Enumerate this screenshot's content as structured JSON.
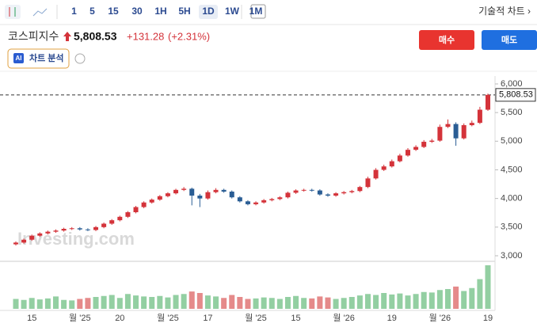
{
  "toolbar": {
    "intervals": [
      "1",
      "5",
      "15",
      "30",
      "1H",
      "5H",
      "1D",
      "1W",
      "1M"
    ],
    "active_interval": "1D",
    "technical": "기술적 차트 ›"
  },
  "header": {
    "name": "코스피지수",
    "change": "+131.28",
    "change_pct": "(+2.31%)",
    "buy": "매수",
    "sell": "매도",
    "ai_badge": "AI",
    "analysis": "차트 분석"
  },
  "watermark": "Investing.com",
  "chart_data": {
    "type": "candlestick",
    "categories": [
      null,
      null,
      "15",
      null,
      null,
      null,
      null,
      null,
      "월 '25",
      null,
      null,
      null,
      null,
      "20",
      null,
      null,
      null,
      null,
      null,
      "월 '25",
      null,
      null,
      null,
      null,
      "17",
      null,
      null,
      null,
      null,
      null,
      "월 '25",
      null,
      null,
      null,
      null,
      "15",
      null,
      null,
      null,
      null,
      null,
      "월 '26",
      null,
      null,
      null,
      null,
      null,
      "19",
      null,
      null,
      null,
      null,
      null,
      "월 '26",
      null,
      null,
      null,
      null,
      null,
      "19"
    ],
    "open": [
      3200,
      3230,
      3280,
      3350,
      3390,
      3420,
      3440,
      3470,
      3480,
      3460,
      3450,
      3500,
      3560,
      3620,
      3680,
      3760,
      3850,
      3930,
      3980,
      4040,
      4090,
      4150,
      4170,
      4050,
      4000,
      4110,
      4150,
      4120,
      4020,
      3950,
      3900,
      3930,
      3970,
      3990,
      4020,
      4100,
      4140,
      4150,
      4140,
      4070,
      4050,
      4090,
      4110,
      4130,
      4200,
      4350,
      4500,
      4560,
      4650,
      4750,
      4850,
      4900,
      4990,
      5010,
      5250,
      5300,
      5050,
      5280,
      5320,
      5550
    ],
    "high": [
      3250,
      3300,
      3370,
      3410,
      3440,
      3460,
      3490,
      3500,
      3500,
      3480,
      3520,
      3580,
      3640,
      3700,
      3780,
      3870,
      3950,
      4000,
      4060,
      4110,
      4170,
      4200,
      4190,
      4080,
      4140,
      4180,
      4170,
      4140,
      4040,
      3970,
      3950,
      3990,
      4010,
      4040,
      4120,
      4160,
      4170,
      4170,
      4160,
      4090,
      4110,
      4130,
      4150,
      4220,
      4380,
      4530,
      4590,
      4680,
      4780,
      4880,
      4930,
      5020,
      5040,
      5290,
      5380,
      5330,
      5310,
      5360,
      5600,
      5830
    ],
    "low": [
      3180,
      3210,
      3260,
      3330,
      3370,
      3400,
      3420,
      3450,
      3440,
      3430,
      3430,
      3480,
      3540,
      3600,
      3660,
      3740,
      3830,
      3910,
      3960,
      4020,
      4070,
      4130,
      3880,
      3850,
      3980,
      4090,
      4100,
      4000,
      3930,
      3880,
      3880,
      3910,
      3950,
      3970,
      4000,
      4080,
      4120,
      4120,
      4050,
      4030,
      4030,
      4070,
      4090,
      4110,
      4180,
      4330,
      4480,
      4540,
      4630,
      4730,
      4830,
      4880,
      4970,
      4990,
      5230,
      4920,
      5030,
      5260,
      5300,
      5530
    ],
    "close": [
      3230,
      3280,
      3350,
      3390,
      3420,
      3440,
      3470,
      3480,
      3460,
      3450,
      3500,
      3560,
      3620,
      3680,
      3760,
      3850,
      3930,
      3980,
      4040,
      4090,
      4150,
      4170,
      4050,
      4000,
      4110,
      4150,
      4120,
      4020,
      3950,
      3900,
      3930,
      3970,
      3990,
      4020,
      4100,
      4140,
      4150,
      4140,
      4070,
      4050,
      4090,
      4110,
      4130,
      4200,
      4350,
      4500,
      4560,
      4650,
      4750,
      4850,
      4900,
      4990,
      5010,
      5250,
      5300,
      5050,
      5280,
      5320,
      5550,
      5808.53
    ],
    "volume": [
      20,
      18,
      22,
      19,
      21,
      25,
      18,
      17,
      20,
      22,
      24,
      26,
      28,
      22,
      30,
      27,
      25,
      24,
      26,
      23,
      28,
      30,
      35,
      32,
      27,
      25,
      22,
      28,
      24,
      20,
      21,
      23,
      22,
      20,
      24,
      26,
      22,
      21,
      25,
      23,
      20,
      22,
      24,
      27,
      30,
      28,
      32,
      29,
      31,
      27,
      30,
      34,
      33,
      38,
      40,
      45,
      36,
      42,
      60,
      88
    ],
    "last_price": {
      "value": 5808.53,
      "label": "5,808.53"
    },
    "ylim": [
      2903,
      6138
    ],
    "yticks": [
      {
        "value": 3000,
        "label": "3,000"
      },
      {
        "value": 3500,
        "label": "3,500"
      },
      {
        "value": 4000,
        "label": "4,000"
      },
      {
        "value": 4500,
        "label": "4,500"
      },
      {
        "value": 5000,
        "label": "5,000"
      },
      {
        "value": 5500,
        "label": "5,500"
      },
      {
        "value": 6000,
        "label": "6,000"
      }
    ],
    "up_color": "#d4333a",
    "down_color": "#2a5d94",
    "volume_up_color": "#93cfa2",
    "volume_down_color": "#e58a8a"
  }
}
